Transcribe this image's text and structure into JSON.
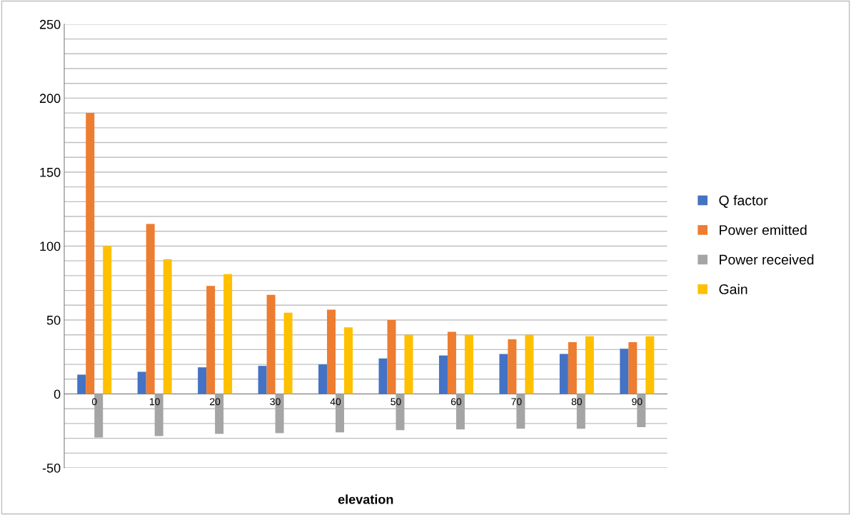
{
  "chart_data": {
    "type": "bar",
    "xlabel": "elevation",
    "categories": [
      "0",
      "10",
      "20",
      "30",
      "40",
      "50",
      "60",
      "70",
      "80",
      "90"
    ],
    "series": [
      {
        "name": "Q factor",
        "color": "#4472c4",
        "values": [
          13,
          15,
          18,
          19,
          20,
          24,
          26,
          27,
          27,
          30.5
        ]
      },
      {
        "name": "Power emitted",
        "color": "#ed7d31",
        "values": [
          190,
          115,
          73,
          67,
          57,
          50,
          42,
          37,
          35,
          35
        ]
      },
      {
        "name": "Power received",
        "color": "#a5a5a5",
        "values": [
          -29.5,
          -28.5,
          -27,
          -26.5,
          -26,
          -24.5,
          -24,
          -23.5,
          -23.5,
          -22.5
        ]
      },
      {
        "name": "Gain",
        "color": "#ffc000",
        "values": [
          100,
          91,
          81,
          55,
          45,
          40,
          40,
          40,
          39,
          39
        ]
      }
    ],
    "ylim": [
      -50,
      250
    ],
    "yticks": [
      -50,
      {
        "value": -40,
        "label": null
      },
      {
        "value": -30,
        "label": null
      },
      {
        "value": -20,
        "label": null
      },
      {
        "value": -10,
        "label": null
      },
      0,
      {
        "value": 10,
        "label": null
      },
      {
        "value": 20,
        "label": null
      },
      {
        "value": 30,
        "label": null
      },
      {
        "value": 40,
        "label": null
      },
      50,
      {
        "value": 60,
        "label": null
      },
      {
        "value": 70,
        "label": null
      },
      {
        "value": 80,
        "label": null
      },
      {
        "value": 90,
        "label": null
      },
      100,
      {
        "value": 110,
        "label": null
      },
      {
        "value": 120,
        "label": null
      },
      {
        "value": 130,
        "label": null
      },
      {
        "value": 140,
        "label": null
      },
      150,
      {
        "value": 160,
        "label": null
      },
      {
        "value": 170,
        "label": null
      },
      {
        "value": 180,
        "label": null
      },
      {
        "value": 190,
        "label": null
      },
      200,
      {
        "value": 210,
        "label": null
      },
      {
        "value": 220,
        "label": null
      },
      {
        "value": 230,
        "label": null
      },
      {
        "value": 240,
        "label": null
      },
      250
    ],
    "grid": "y",
    "legend": "right"
  }
}
